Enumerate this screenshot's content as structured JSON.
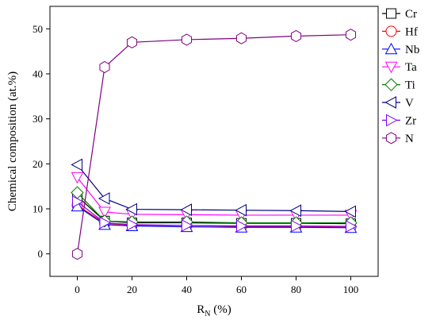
{
  "chart_data": {
    "type": "line",
    "xlabel_main": "R",
    "xlabel_sub": "N",
    "xlabel_tail": " (%)",
    "ylabel": "Chemical composition (at.%)",
    "xlim": [
      -10,
      110
    ],
    "ylim": [
      -5,
      55
    ],
    "x_ticks": [
      0,
      20,
      40,
      60,
      80,
      100
    ],
    "y_ticks": [
      0,
      10,
      20,
      30,
      40,
      50
    ],
    "x": [
      0,
      10,
      20,
      40,
      60,
      80,
      100
    ],
    "grid": false,
    "legend_position": "right",
    "series": [
      {
        "name": "Cr",
        "color": "#000000",
        "marker": "square",
        "values": [
          12.8,
          7.3,
          6.9,
          6.9,
          6.8,
          6.8,
          6.7
        ]
      },
      {
        "name": "Hf",
        "color": "#ff0000",
        "marker": "circle",
        "values": [
          10.8,
          6.8,
          6.4,
          6.3,
          6.1,
          6.1,
          6.0
        ]
      },
      {
        "name": "Nb",
        "color": "#0000ff",
        "marker": "triangle-up",
        "values": [
          10.6,
          6.5,
          6.2,
          6.0,
          5.9,
          5.9,
          5.8
        ]
      },
      {
        "name": "Ta",
        "color": "#ff00ff",
        "marker": "triangle-down",
        "values": [
          17.0,
          9.3,
          8.8,
          8.7,
          8.6,
          8.6,
          8.6
        ]
      },
      {
        "name": "Ti",
        "color": "#008000",
        "marker": "diamond",
        "values": [
          13.6,
          7.3,
          7.1,
          7.1,
          6.9,
          6.9,
          6.9
        ]
      },
      {
        "name": "V",
        "color": "#000080",
        "marker": "triangle-left",
        "values": [
          19.8,
          12.3,
          9.9,
          9.8,
          9.7,
          9.6,
          9.4
        ]
      },
      {
        "name": "Zr",
        "color": "#8000ff",
        "marker": "triangle-right",
        "values": [
          11.6,
          6.9,
          6.5,
          6.3,
          6.2,
          6.2,
          6.1
        ]
      },
      {
        "name": "N",
        "color": "#800080",
        "marker": "hexagon",
        "values": [
          0.0,
          41.5,
          47.0,
          47.6,
          47.9,
          48.4,
          48.7
        ]
      }
    ]
  }
}
